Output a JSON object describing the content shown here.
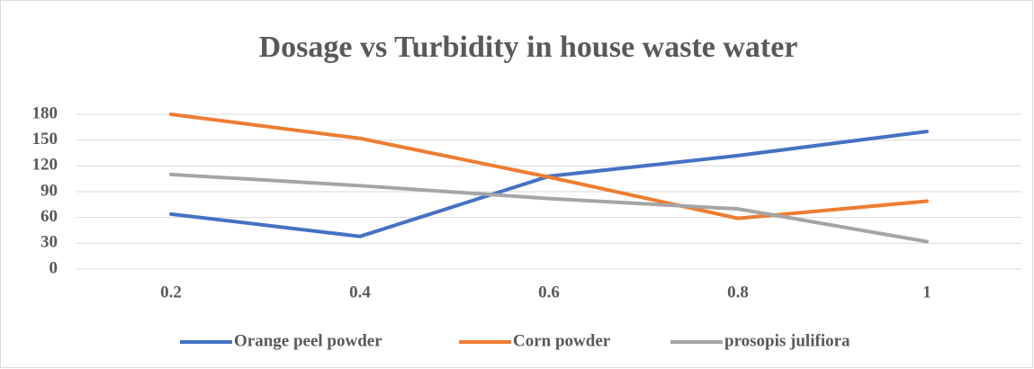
{
  "chart_data": {
    "type": "line",
    "title": "Dosage vs Turbidity in house waste water",
    "categories": [
      "0.2",
      "0.4",
      "0.6",
      "0.8",
      "1"
    ],
    "series": [
      {
        "name": "Orange peel powder",
        "color": "#4472c4",
        "values": [
          64,
          38,
          108,
          132,
          160
        ]
      },
      {
        "name": "Corn powder",
        "color": "#ed7d31",
        "values": [
          180,
          152,
          107,
          59,
          79
        ]
      },
      {
        "name": "prosopis julifiora",
        "color": "#a5a5a5",
        "values": [
          110,
          97,
          82,
          70,
          32
        ]
      }
    ],
    "ylim": [
      0,
      180
    ],
    "yticks": [
      0,
      30,
      60,
      90,
      120,
      150,
      180
    ],
    "grid": true,
    "legend": "bottom"
  }
}
